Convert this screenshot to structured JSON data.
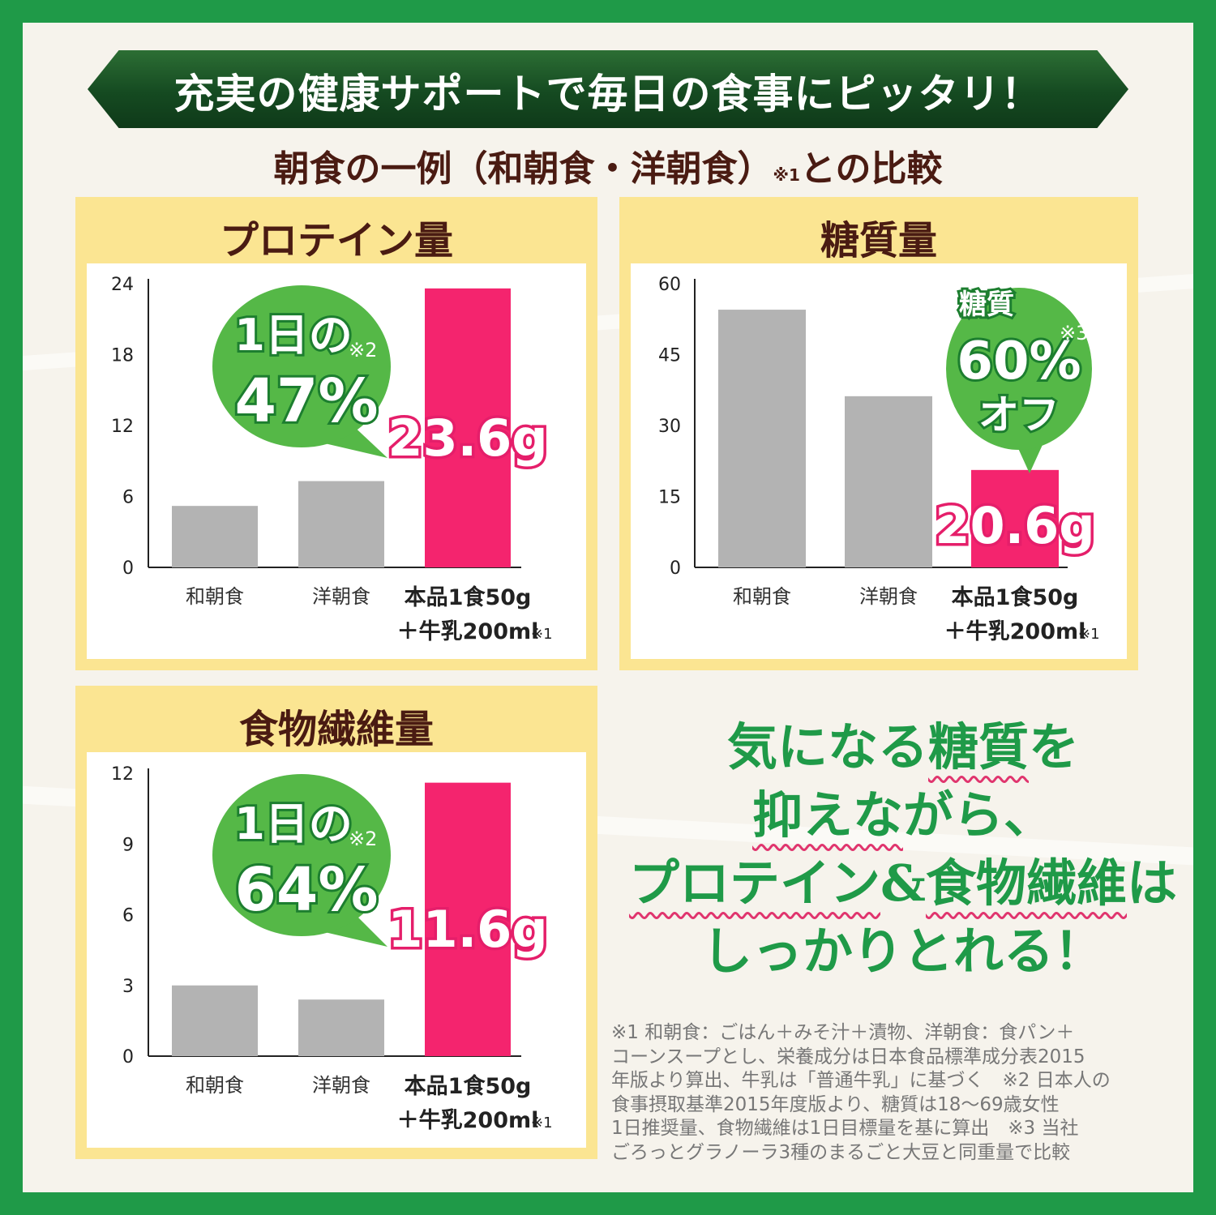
{
  "headline": "充実の健康サポートで毎日の食事にピッタリ！",
  "subtitle": {
    "text": "朝食の一例（和朝食・洋朝食）",
    "note": "※1",
    "suffix": "との比較"
  },
  "panels": [
    {
      "title": "プロテイン量"
    },
    {
      "title": "糖質量"
    },
    {
      "title": "食物繊維量"
    }
  ],
  "colors": {
    "frame": "#1f9a48",
    "banner": "#1a5226",
    "panel": "#fbe592",
    "bar_gray": "#b3b3b3",
    "bar_pink": "#f4246e",
    "bubble_green": "#55b847",
    "title_brown": "#4a1b12"
  },
  "chart_data": [
    {
      "type": "bar",
      "title": "プロテイン量",
      "categories": [
        "和朝食",
        "洋朝食",
        "本品1食50g＋牛乳200ml"
      ],
      "category_lines": [
        [
          "和朝食"
        ],
        [
          "洋朝食"
        ],
        [
          "本品1食50g",
          "＋牛乳200ml"
        ]
      ],
      "category_note": "※1",
      "values": [
        5.2,
        7.3,
        23.6
      ],
      "ylim": [
        0,
        24
      ],
      "yticks": [
        0,
        6,
        12,
        18,
        24
      ],
      "highlight_index": 2,
      "data_label": "23.6g",
      "callout": {
        "line1": "1日の",
        "line2": "47%",
        "note": "※2"
      }
    },
    {
      "type": "bar",
      "title": "糖質量",
      "categories": [
        "和朝食",
        "洋朝食",
        "本品1食50g＋牛乳200ml"
      ],
      "category_lines": [
        [
          "和朝食"
        ],
        [
          "洋朝食"
        ],
        [
          "本品1食50g",
          "＋牛乳200ml"
        ]
      ],
      "category_note": "※1",
      "values": [
        54.5,
        36.2,
        20.6
      ],
      "ylim": [
        0,
        60
      ],
      "yticks": [
        0,
        15,
        30,
        45,
        60
      ],
      "highlight_index": 2,
      "data_label": "20.6g",
      "callout": {
        "line1": "糖質",
        "line2": "60%",
        "line3": "オフ",
        "note": "※3"
      }
    },
    {
      "type": "bar",
      "title": "食物繊維量",
      "categories": [
        "和朝食",
        "洋朝食",
        "本品1食50g＋牛乳200ml"
      ],
      "category_lines": [
        [
          "和朝食"
        ],
        [
          "洋朝食"
        ],
        [
          "本品1食50g",
          "＋牛乳200ml"
        ]
      ],
      "category_note": "※1",
      "values": [
        3.0,
        2.4,
        11.6
      ],
      "ylim": [
        0,
        12
      ],
      "yticks": [
        0,
        3,
        6,
        9,
        12
      ],
      "highlight_index": 2,
      "data_label": "11.6g",
      "callout": {
        "line1": "1日の",
        "line2": "64%",
        "note": "※2"
      }
    }
  ],
  "slogan": {
    "l1a": "気になる",
    "l1b": "糖質",
    "l1c": "を",
    "l2a": "抑えな",
    "l2b": "がら、",
    "l3a": "プロテイン",
    "l3b": "&",
    "l3c": "食物繊維",
    "l3d": "は",
    "l4": "しっかりとれる！"
  },
  "footnotes": [
    "※1 和朝食：ごはん＋みそ汁＋漬物、洋朝食：食パン＋",
    "コーンスープとし、栄養成分は日本食品標準成分表2015",
    "年版より算出、牛乳は「普通牛乳」に基づく　※2 日本人の",
    "食事摂取基準2015年度版より、糖質は18～69歳女性",
    "1日推奨量、食物繊維は1日目標量を基に算出　※3 当社",
    "ごろっとグラノーラ3種のまるごと大豆と同重量で比較"
  ]
}
